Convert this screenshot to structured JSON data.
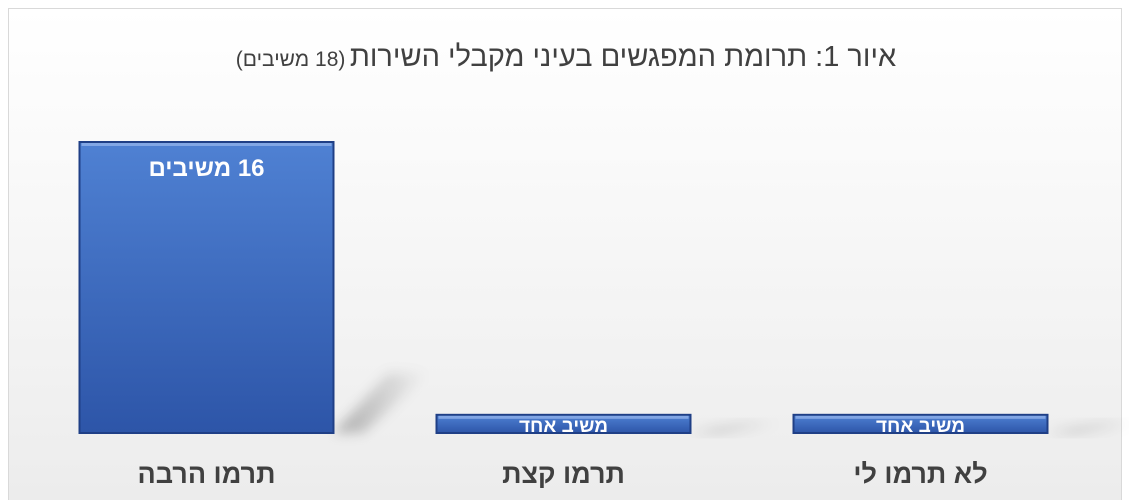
{
  "title": {
    "main": "איור 1: תרומת המפגשים בעיני מקבלי השירות",
    "sub": "(18 משיבים)"
  },
  "chart_data": {
    "type": "bar",
    "categories": [
      "תרמו הרבה",
      "תרמו קצת",
      "לא תרמו לי"
    ],
    "values": [
      16,
      1,
      1
    ],
    "data_labels": [
      "16 משיבים",
      "משיב אחד",
      "משיב אחד"
    ],
    "ylim": [
      0,
      16
    ],
    "grid": false,
    "legend": "none",
    "colors": {
      "bar_top": "#4f81d3",
      "bar_bottom": "#2d55a8",
      "bar_edge": "#1f3f86",
      "label_text": "#ffffff",
      "category_text": "#404040"
    }
  }
}
